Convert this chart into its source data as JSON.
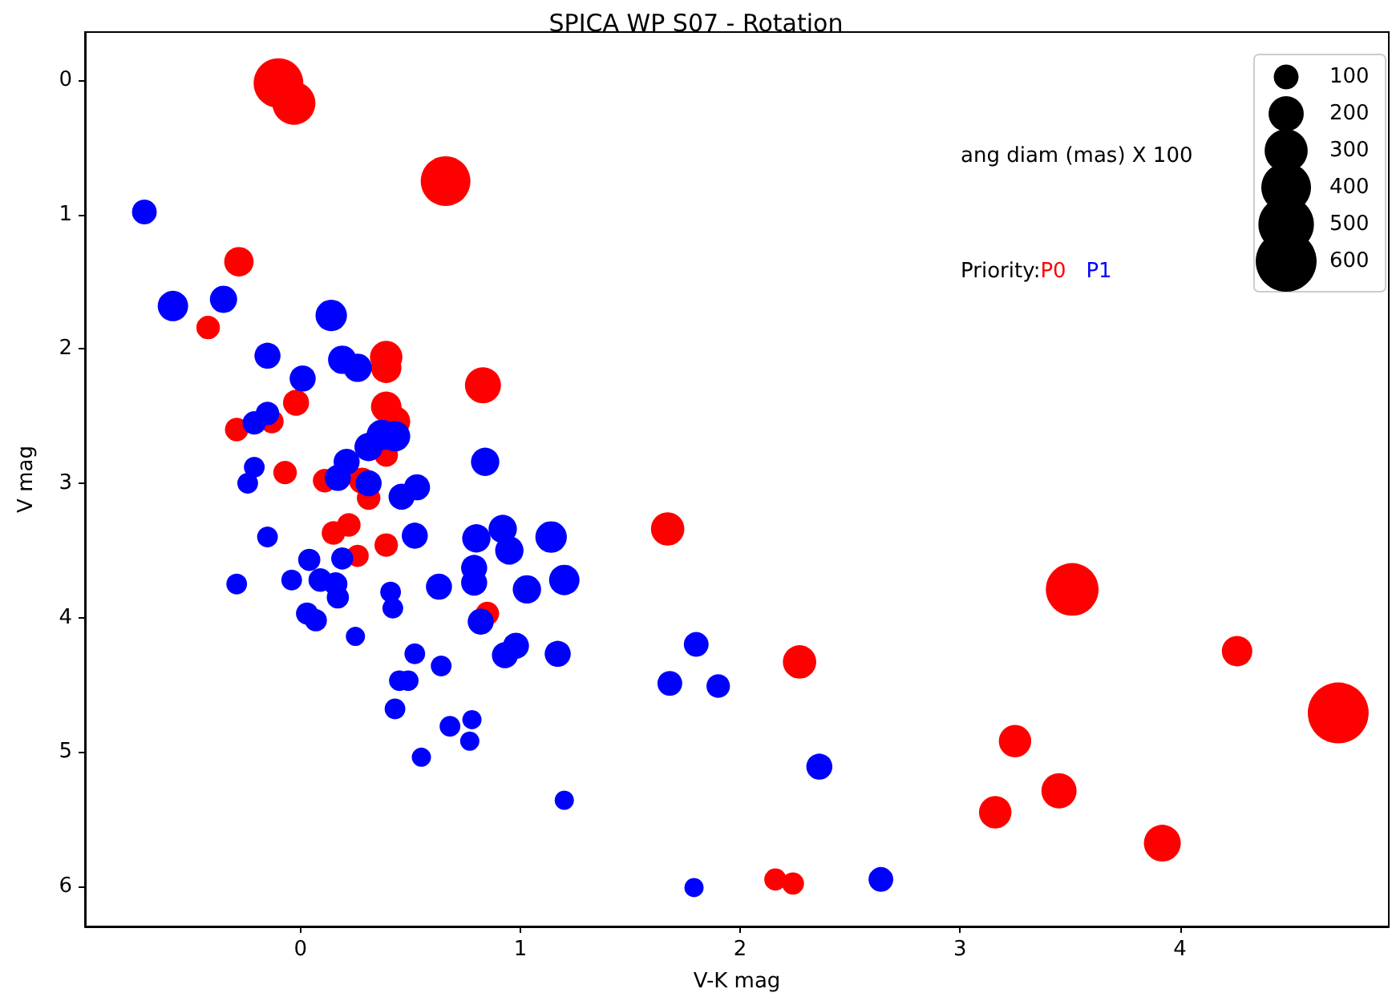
{
  "chart_data": {
    "type": "bubble",
    "title": "SPICA WP S07 - Rotation",
    "xlabel": "V-K mag",
    "ylabel": "V mag",
    "legend_title": "Priority:",
    "annotations": [
      "ang diam (mas) X 100"
    ],
    "xlim": [
      -0.98,
      4.95
    ],
    "xticks": [
      0,
      1,
      2,
      3,
      4
    ],
    "ylim": [
      6.3,
      -0.36
    ],
    "yticks": [
      0,
      1,
      2,
      3,
      4,
      5,
      6
    ],
    "grid": false,
    "legend": "top right",
    "marker": "circle",
    "size_legend": [
      100,
      200,
      300,
      400,
      500,
      600
    ],
    "series": [
      {
        "name": "P0",
        "color": "#ff0000",
        "x": [
          -0.1,
          -0.03,
          0.66,
          -0.28,
          -0.42,
          0.39,
          0.39,
          0.83,
          -0.02,
          0.39,
          0.43,
          -0.29,
          -0.13,
          0.39,
          -0.07,
          0.11,
          0.28,
          0.31,
          0.15,
          0.22,
          0.26,
          0.39,
          0.85,
          1.67,
          3.51,
          2.27,
          4.26,
          4.72,
          3.25,
          3.45,
          3.16,
          3.92,
          2.16,
          2.24
        ],
        "values": [
          0.02,
          0.17,
          0.75,
          1.35,
          1.84,
          2.06,
          2.14,
          2.27,
          2.4,
          2.43,
          2.54,
          2.6,
          2.54,
          2.79,
          2.92,
          2.98,
          2.98,
          3.11,
          3.37,
          3.31,
          3.54,
          3.46,
          3.97,
          3.34,
          3.79,
          4.33,
          4.25,
          4.71,
          4.92,
          5.29,
          5.45,
          5.68,
          5.95,
          5.98
        ],
        "sizes": [
          400,
          300,
          400,
          140,
          90,
          170,
          150,
          210,
          110,
          150,
          150,
          90,
          90,
          90,
          90,
          90,
          110,
          90,
          90,
          90,
          80,
          90,
          90,
          180,
          450,
          180,
          150,
          600,
          170,
          200,
          170,
          220,
          80,
          80
        ]
      },
      {
        "name": "P1",
        "color": "#0000ff",
        "x": [
          -0.71,
          -0.58,
          -0.35,
          0.14,
          -0.15,
          0.01,
          0.19,
          0.26,
          -0.15,
          -0.21,
          -0.21,
          -0.24,
          0.17,
          0.21,
          0.31,
          0.46,
          0.53,
          0.31,
          0.37,
          0.43,
          0.84,
          -0.15,
          -0.29,
          -0.04,
          0.04,
          0.09,
          0.16,
          0.17,
          0.03,
          0.07,
          0.19,
          0.25,
          0.41,
          0.42,
          0.52,
          0.63,
          0.52,
          0.45,
          0.49,
          0.43,
          0.55,
          0.64,
          0.68,
          0.78,
          0.77,
          0.8,
          0.92,
          0.95,
          0.79,
          0.79,
          0.82,
          0.93,
          0.98,
          1.03,
          1.14,
          1.2,
          1.17,
          1.2,
          1.8,
          1.68,
          1.9,
          2.36,
          1.79,
          2.64
        ],
        "values": [
          0.98,
          1.68,
          1.63,
          1.75,
          2.05,
          2.22,
          2.08,
          2.14,
          2.48,
          2.55,
          2.88,
          3.0,
          2.96,
          2.84,
          3.0,
          3.1,
          3.03,
          2.73,
          2.64,
          2.65,
          2.84,
          3.4,
          3.75,
          3.72,
          3.57,
          3.72,
          3.75,
          3.85,
          3.97,
          4.02,
          3.56,
          4.14,
          3.81,
          3.93,
          3.39,
          3.77,
          4.27,
          4.47,
          4.47,
          4.68,
          5.04,
          4.36,
          4.81,
          4.76,
          4.92,
          3.41,
          3.34,
          3.5,
          3.63,
          3.74,
          4.03,
          4.28,
          4.21,
          3.79,
          3.4,
          3.72,
          4.27,
          5.36,
          4.2,
          4.49,
          4.51,
          5.11,
          6.01,
          5.95
        ],
        "sizes": [
          100,
          150,
          120,
          160,
          110,
          110,
          130,
          130,
          90,
          90,
          70,
          70,
          110,
          110,
          110,
          110,
          110,
          130,
          150,
          150,
          130,
          70,
          70,
          70,
          80,
          90,
          90,
          80,
          80,
          80,
          80,
          60,
          70,
          70,
          110,
          110,
          70,
          70,
          70,
          70,
          60,
          70,
          70,
          60,
          60,
          130,
          130,
          130,
          110,
          110,
          110,
          110,
          110,
          130,
          160,
          150,
          110,
          60,
          100,
          100,
          90,
          110,
          60,
          100
        ]
      }
    ]
  }
}
